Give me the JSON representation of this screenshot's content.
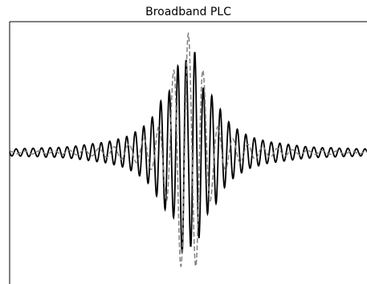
{
  "chart_data": {
    "type": "line",
    "title": "Broadband PLC",
    "xlabel": "",
    "ylabel": "",
    "xlim": [
      -10,
      10
    ],
    "ylim": [
      -1.0,
      1.0
    ],
    "grid": false,
    "axes_visible": [
      "left",
      "top"
    ],
    "series": [
      {
        "style": "solid",
        "color": "#000000",
        "x": [
          -10,
          -9.5,
          -9,
          -8.5,
          -8,
          -7.5,
          -7,
          -6.5,
          -6,
          -5.5,
          -5,
          -4.5,
          -4,
          -3.5,
          -3,
          -2.5,
          -2,
          -1.6,
          -1.2,
          -0.8,
          -0.5,
          -0.2,
          0,
          0.2,
          0.5,
          0.8,
          1.2,
          1.6,
          2,
          2.5,
          3,
          3.5,
          4,
          4.5,
          5,
          5.5,
          6,
          6.5,
          7,
          7.5,
          8,
          8.5,
          9,
          9.5,
          10
        ],
        "envelope": [
          0.03,
          0.03,
          0.035,
          0.035,
          0.04,
          0.04,
          0.045,
          0.05,
          0.06,
          0.07,
          0.08,
          0.09,
          0.11,
          0.13,
          0.17,
          0.22,
          0.3,
          0.42,
          0.5,
          0.55,
          0.8,
          0.9,
          0.6,
          0.9,
          0.8,
          0.55,
          0.5,
          0.42,
          0.3,
          0.22,
          0.17,
          0.13,
          0.11,
          0.09,
          0.08,
          0.07,
          0.06,
          0.05,
          0.045,
          0.04,
          0.04,
          0.035,
          0.035,
          0.03,
          0.03
        ]
      },
      {
        "style": "dashed",
        "color": "#808080",
        "x": [
          -10,
          -8,
          -6,
          -4,
          -3,
          -2,
          -1.5,
          -1,
          -0.5,
          0,
          0.5,
          1,
          1.5,
          2,
          3,
          4,
          6,
          8,
          10
        ],
        "envelope": [
          0.01,
          0.015,
          0.02,
          0.05,
          0.08,
          0.15,
          0.25,
          0.55,
          0.95,
          1.0,
          0.95,
          0.55,
          0.25,
          0.15,
          0.08,
          0.05,
          0.02,
          0.015,
          0.01
        ]
      }
    ]
  }
}
